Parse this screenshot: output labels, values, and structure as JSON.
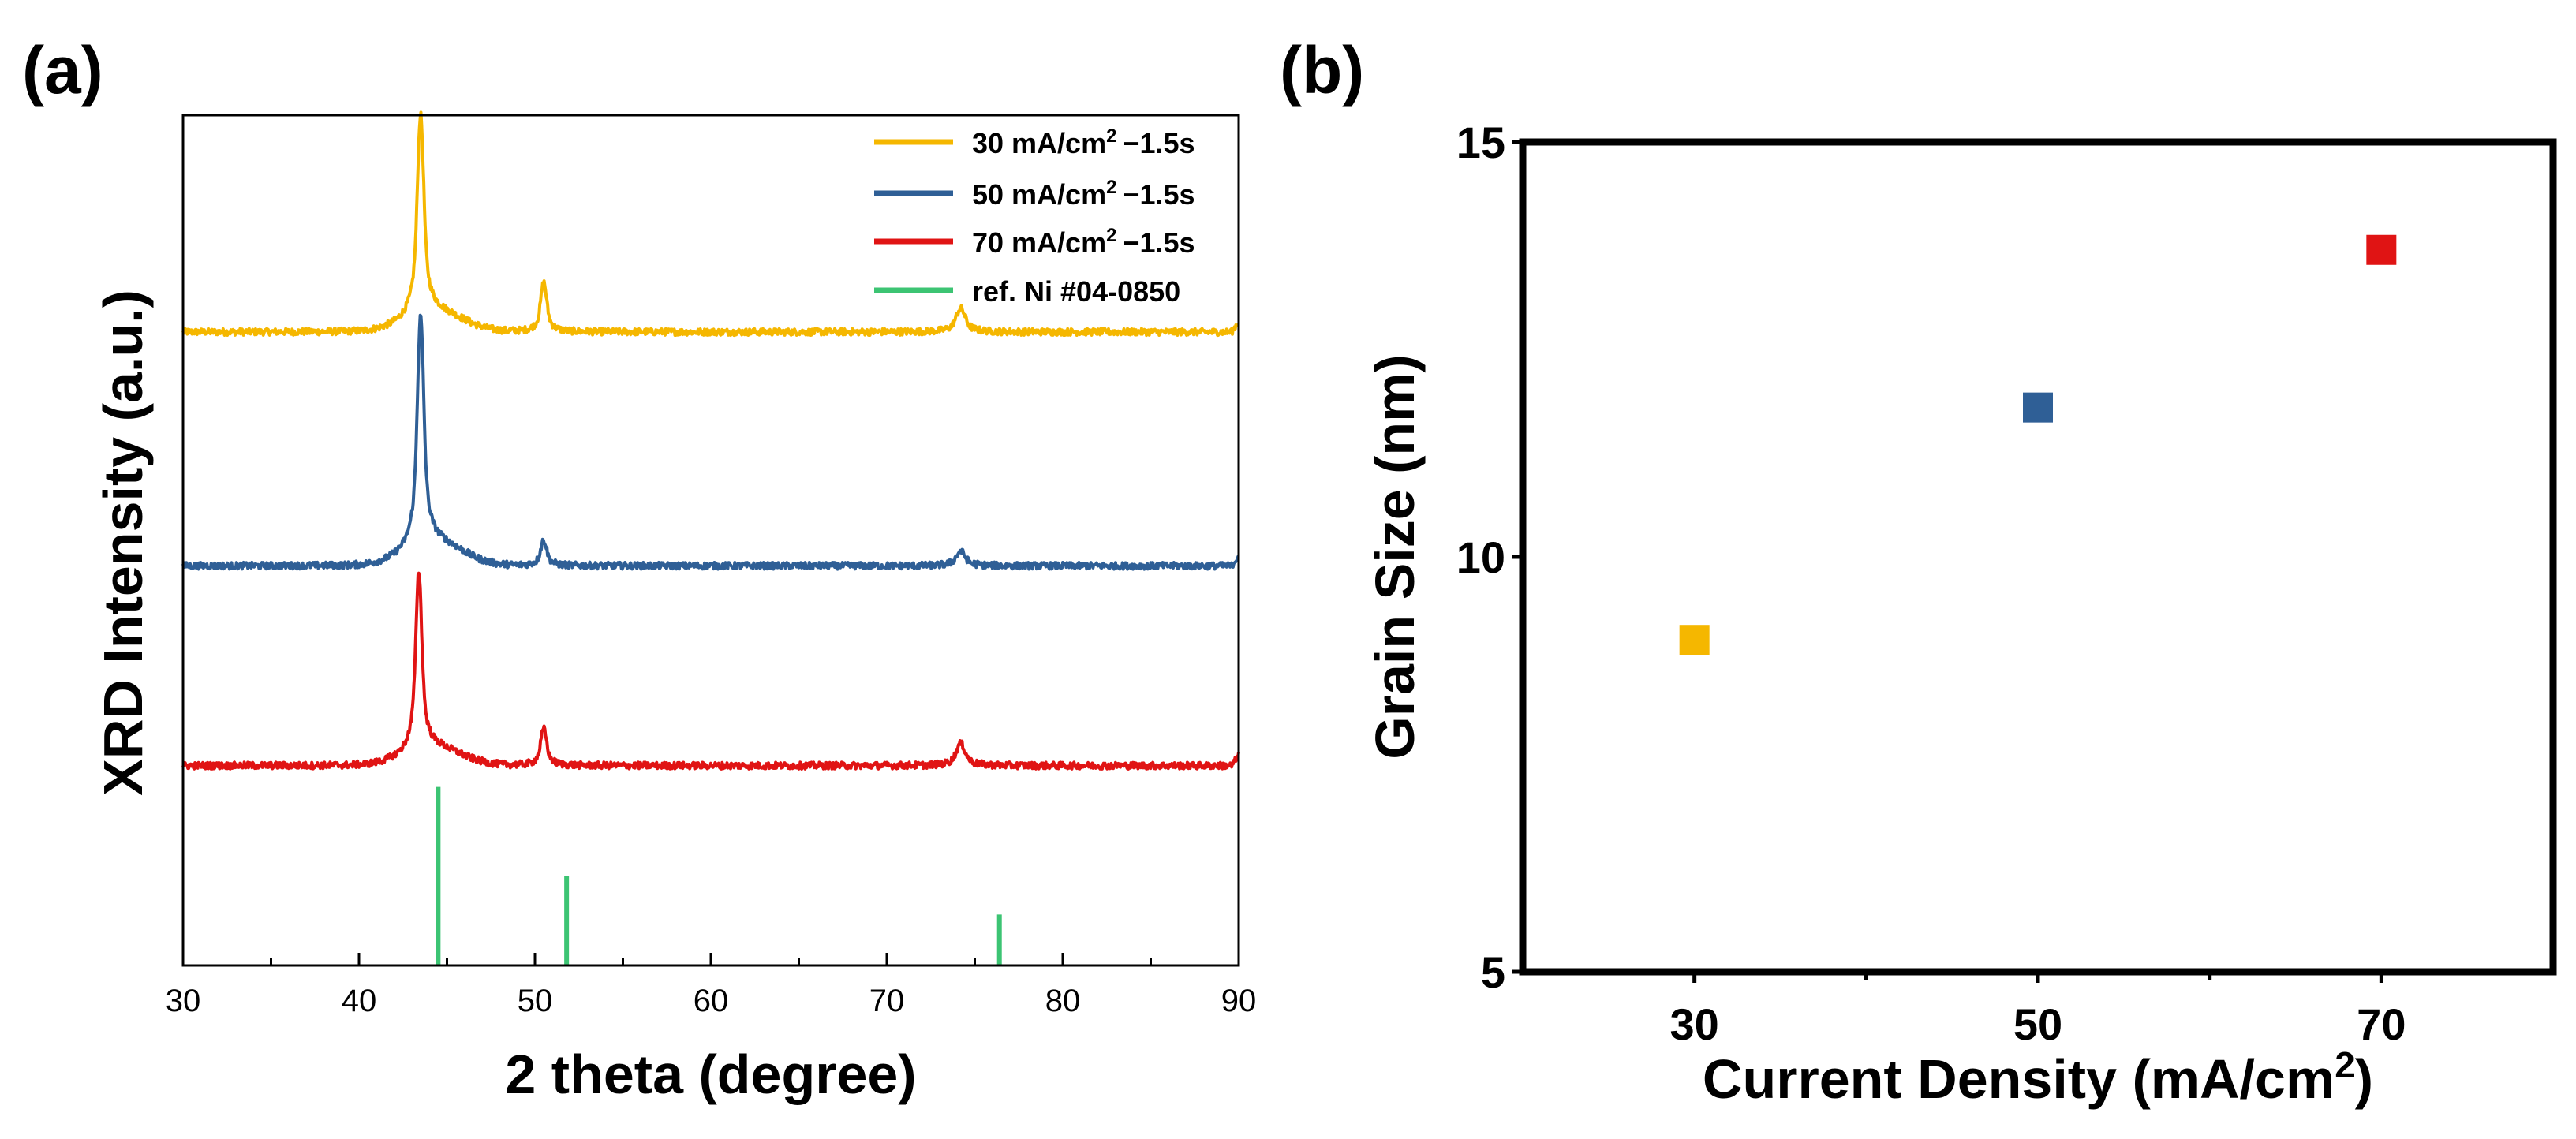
{
  "chart_data": [
    {
      "panel_label": "(a)",
      "type": "line",
      "xlabel": "2 theta (degree)",
      "ylabel": "XRD Intensity (a.u.)",
      "xlim": [
        30,
        90
      ],
      "x_ticks": [
        30,
        40,
        50,
        60,
        70,
        80,
        90
      ],
      "y_ticks_shown": false,
      "legend_position": "top-right",
      "series": [
        {
          "name": "30 mA/cm² −1.5s",
          "legend_main": "30 mA/cm",
          "legend_sup": "2",
          "legend_tail": "−1.5s",
          "color": "#F5B700",
          "baseline": 0.745,
          "peaks": [
            {
              "x": 43.5,
              "height": 0.235,
              "width": 0.32
            },
            {
              "x": 50.5,
              "height": 0.058,
              "width": 0.3
            },
            {
              "x": 74.2,
              "height": 0.028,
              "width": 0.45
            }
          ]
        },
        {
          "name": "50 mA/cm² −1.5s",
          "legend_main": "50 mA/cm",
          "legend_sup": "2",
          "legend_tail": "−1.5s",
          "color": "#2F5F96",
          "baseline": 0.47,
          "peaks": [
            {
              "x": 43.5,
              "height": 0.27,
              "width": 0.32
            },
            {
              "x": 50.5,
              "height": 0.03,
              "width": 0.3
            },
            {
              "x": 74.2,
              "height": 0.017,
              "width": 0.45
            }
          ]
        },
        {
          "name": "70 mA/cm² −1.5s",
          "legend_main": "70 mA/cm",
          "legend_sup": "2",
          "legend_tail": "−1.5s",
          "color": "#E01414",
          "baseline": 0.235,
          "peaks": [
            {
              "x": 43.4,
              "height": 0.21,
              "width": 0.3
            },
            {
              "x": 50.5,
              "height": 0.043,
              "width": 0.3
            },
            {
              "x": 74.2,
              "height": 0.026,
              "width": 0.45
            }
          ]
        }
      ],
      "reference": {
        "name": "ref. Ni #04-0850",
        "color": "#3CC473",
        "sticks": [
          {
            "x": 44.5,
            "intensity": 0.21
          },
          {
            "x": 51.8,
            "intensity": 0.105
          },
          {
            "x": 76.4,
            "intensity": 0.06
          }
        ]
      }
    },
    {
      "panel_label": "(b)",
      "type": "scatter",
      "xlabel_main": "Current Density (mA/cm",
      "xlabel_sup": "2",
      "xlabel_tail": ")",
      "ylabel": "Grain Size (nm)",
      "xlim": [
        20,
        80
      ],
      "ylim": [
        5,
        15
      ],
      "x_ticks": [
        30,
        50,
        70
      ],
      "y_ticks": [
        5,
        10,
        15
      ],
      "points": [
        {
          "x": 30,
          "y": 9.0,
          "color": "#F5B700"
        },
        {
          "x": 50,
          "y": 11.8,
          "color": "#2F5F96"
        },
        {
          "x": 70,
          "y": 13.7,
          "color": "#E01414"
        }
      ]
    }
  ]
}
